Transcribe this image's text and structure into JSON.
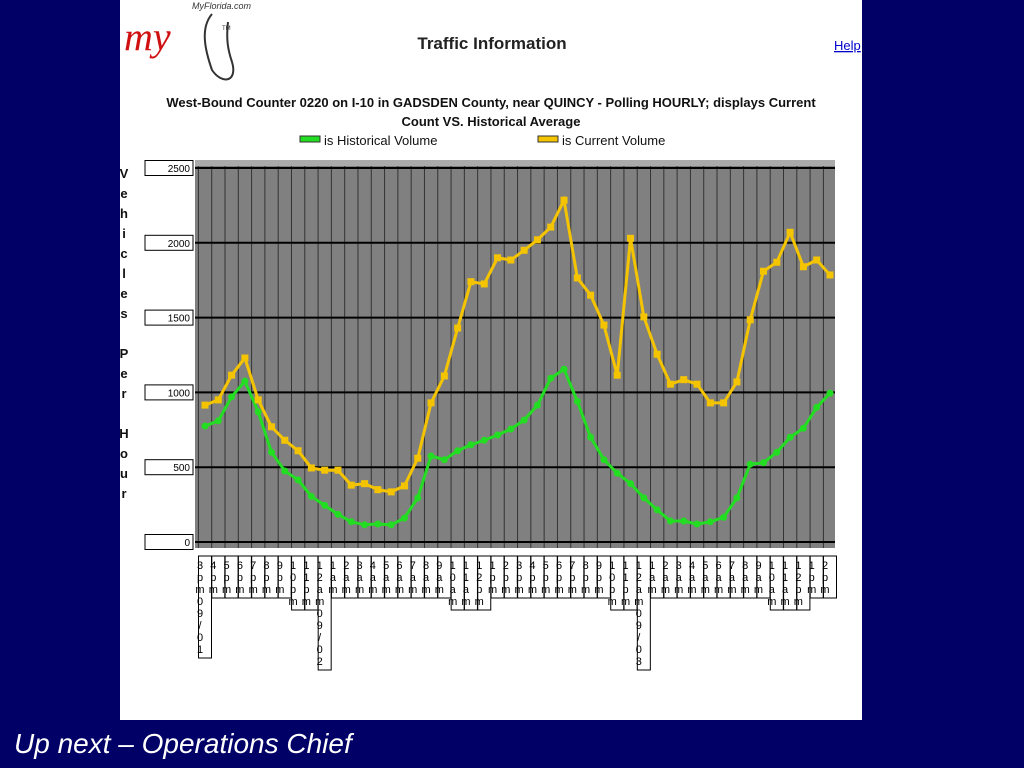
{
  "slide_caption": "Up next – Operations Chief",
  "logo": {
    "site": "MyFlorida.com",
    "mark": "my",
    "tm": "TM"
  },
  "header": {
    "title": "Traffic Information",
    "link": "Help"
  },
  "chart_data": {
    "type": "line",
    "title": [
      "West-Bound Counter 0220 on I-10 in GADSDEN County, near QUINCY - Polling HOURLY; displays Current",
      "Count VS. Historical Average"
    ],
    "y_label": "Vehicles Per Hour",
    "categories": [
      "3pm09/01",
      "4pm",
      "5pm",
      "6pm",
      "7pm",
      "8pm",
      "9pm",
      "10pm",
      "11pm",
      "12am09/02",
      "1am",
      "2am",
      "3am",
      "4am",
      "5am",
      "6am",
      "7am",
      "8am",
      "9am",
      "10am",
      "11am",
      "12pm",
      "1pm",
      "2pm",
      "3pm",
      "4pm",
      "5pm",
      "6pm",
      "7pm",
      "8pm",
      "9pm",
      "10pm",
      "11pm",
      "12am09/03",
      "1am",
      "2am",
      "3am",
      "4am",
      "5am",
      "6am",
      "7am",
      "8am",
      "9am",
      "10am",
      "11am",
      "12pm",
      "1pm",
      "2pm"
    ],
    "series": [
      {
        "name": "is Historical Volume",
        "color": "#22dd22",
        "values": [
          775,
          810,
          970,
          1075,
          870,
          600,
          475,
          415,
          305,
          245,
          185,
          135,
          115,
          120,
          115,
          160,
          295,
          575,
          550,
          610,
          650,
          680,
          715,
          755,
          815,
          915,
          1095,
          1155,
          940,
          700,
          550,
          460,
          390,
          295,
          215,
          140,
          140,
          120,
          135,
          165,
          295,
          520,
          530,
          600,
          700,
          760,
          900,
          995
        ]
      },
      {
        "name": "is Current Volume",
        "color": "#f5c400",
        "values": [
          915,
          950,
          1115,
          1230,
          950,
          770,
          680,
          610,
          495,
          480,
          480,
          380,
          390,
          350,
          335,
          375,
          560,
          930,
          1110,
          1430,
          1740,
          1725,
          1900,
          1885,
          1950,
          2020,
          2105,
          2285,
          1765,
          1650,
          1450,
          1115,
          2030,
          1505,
          1255,
          1055,
          1085,
          1055,
          930,
          930,
          1070,
          1485,
          1810,
          1870,
          2070,
          1840,
          1885,
          1785
        ]
      }
    ],
    "ylim": [
      0,
      2500
    ],
    "yticks": [
      0,
      500,
      1000,
      1500,
      2000,
      2500
    ],
    "grid": true
  }
}
